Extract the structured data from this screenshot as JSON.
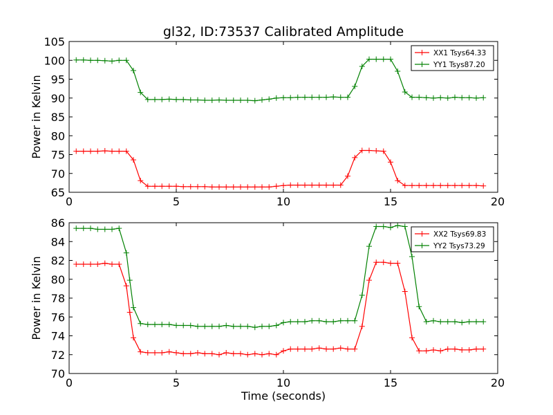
{
  "figure": {
    "background": "#ffffff"
  },
  "chart_data": [
    {
      "type": "line",
      "title": "gl32, ID:73537 Calibrated Amplitude",
      "xlabel": "",
      "ylabel": "Power in Kelvin",
      "xlim": [
        0,
        20
      ],
      "ylim": [
        65,
        105
      ],
      "xticks": [
        "0",
        "5",
        "10",
        "15",
        "20"
      ],
      "yticks": [
        "65",
        "70",
        "75",
        "80",
        "85",
        "90",
        "95",
        "100",
        "105"
      ],
      "grid": false,
      "legend_position": "top-right",
      "marker": "+",
      "x": [
        0.33,
        0.67,
        1.0,
        1.33,
        1.67,
        2.0,
        2.33,
        2.67,
        3.0,
        3.33,
        3.67,
        4.0,
        4.33,
        4.67,
        5.0,
        5.33,
        5.67,
        6.0,
        6.33,
        6.67,
        7.0,
        7.33,
        7.67,
        8.0,
        8.33,
        8.67,
        9.0,
        9.33,
        9.67,
        10.0,
        10.33,
        10.67,
        11.0,
        11.33,
        11.67,
        12.0,
        12.33,
        12.67,
        13.0,
        13.33,
        13.67,
        14.0,
        14.33,
        14.67,
        15.0,
        15.33,
        15.67,
        16.0,
        16.33,
        16.67,
        17.0,
        17.33,
        17.67,
        18.0,
        18.33,
        18.67,
        19.0,
        19.33
      ],
      "series": [
        {
          "name": "XX1 Tsys64.33",
          "color": "#ff0000",
          "values": [
            75.9,
            75.9,
            75.9,
            75.9,
            76.0,
            75.9,
            75.9,
            75.9,
            73.6,
            68.1,
            66.6,
            66.6,
            66.6,
            66.6,
            66.6,
            66.5,
            66.5,
            66.5,
            66.5,
            66.4,
            66.4,
            66.4,
            66.4,
            66.4,
            66.4,
            66.4,
            66.4,
            66.4,
            66.6,
            66.8,
            66.9,
            66.9,
            66.9,
            66.9,
            66.9,
            66.9,
            66.9,
            66.9,
            69.3,
            74.2,
            76.1,
            76.1,
            76.0,
            75.9,
            73.0,
            68.1,
            66.8,
            66.8,
            66.8,
            66.8,
            66.8,
            66.8,
            66.8,
            66.8,
            66.8,
            66.8,
            66.8,
            66.7
          ]
        },
        {
          "name": "YY1 Tsys87.20",
          "color": "#008000",
          "values": [
            100.1,
            100.1,
            100.0,
            100.0,
            99.9,
            99.8,
            100.0,
            100.0,
            97.3,
            91.5,
            89.6,
            89.6,
            89.6,
            89.7,
            89.6,
            89.6,
            89.5,
            89.5,
            89.4,
            89.4,
            89.5,
            89.4,
            89.4,
            89.4,
            89.4,
            89.3,
            89.5,
            89.7,
            90.0,
            90.1,
            90.1,
            90.2,
            90.2,
            90.2,
            90.2,
            90.2,
            90.3,
            90.2,
            90.2,
            93.1,
            98.4,
            100.3,
            100.3,
            100.3,
            100.3,
            97.1,
            91.6,
            90.2,
            90.2,
            90.1,
            90.0,
            90.1,
            90.0,
            90.2,
            90.1,
            90.1,
            90.0,
            90.1
          ]
        }
      ]
    },
    {
      "type": "line",
      "title": "",
      "xlabel": "Time (seconds)",
      "ylabel": "Power in Kelvin",
      "xlim": [
        0,
        20
      ],
      "ylim": [
        70,
        86
      ],
      "xticks": [
        "0",
        "5",
        "10",
        "15",
        "20"
      ],
      "yticks": [
        "70",
        "72",
        "74",
        "76",
        "78",
        "80",
        "82",
        "84",
        "86"
      ],
      "grid": false,
      "legend_position": "top-right",
      "marker": "+",
      "x": [
        0.33,
        0.67,
        1.0,
        1.33,
        1.67,
        2.0,
        2.33,
        2.67,
        2.83,
        3.0,
        3.33,
        3.67,
        4.0,
        4.33,
        4.67,
        5.0,
        5.33,
        5.67,
        6.0,
        6.33,
        6.67,
        7.0,
        7.33,
        7.67,
        8.0,
        8.33,
        8.67,
        9.0,
        9.33,
        9.67,
        10.0,
        10.33,
        10.67,
        11.0,
        11.33,
        11.67,
        12.0,
        12.33,
        12.67,
        13.0,
        13.33,
        13.67,
        14.0,
        14.33,
        14.67,
        15.0,
        15.33,
        15.67,
        16.0,
        16.33,
        16.67,
        17.0,
        17.33,
        17.67,
        18.0,
        18.33,
        18.67,
        19.0,
        19.33
      ],
      "series": [
        {
          "name": "XX2 Tsys69.83",
          "color": "#ff0000",
          "values": [
            81.6,
            81.6,
            81.6,
            81.6,
            81.7,
            81.6,
            81.6,
            79.3,
            76.5,
            73.8,
            72.3,
            72.2,
            72.2,
            72.2,
            72.3,
            72.2,
            72.1,
            72.1,
            72.2,
            72.1,
            72.1,
            72.0,
            72.2,
            72.1,
            72.1,
            72.0,
            72.1,
            72.0,
            72.1,
            72.0,
            72.4,
            72.6,
            72.6,
            72.6,
            72.6,
            72.7,
            72.6,
            72.6,
            72.7,
            72.6,
            72.6,
            75.0,
            79.9,
            81.8,
            81.8,
            81.7,
            81.7,
            78.7,
            73.8,
            72.4,
            72.4,
            72.5,
            72.4,
            72.6,
            72.6,
            72.5,
            72.5,
            72.6,
            72.6
          ]
        },
        {
          "name": "YY2 Tsys73.29",
          "color": "#008000",
          "values": [
            85.4,
            85.4,
            85.4,
            85.3,
            85.3,
            85.3,
            85.4,
            82.8,
            79.9,
            77.0,
            75.3,
            75.2,
            75.2,
            75.2,
            75.2,
            75.1,
            75.1,
            75.1,
            75.0,
            75.0,
            75.0,
            75.0,
            75.1,
            75.0,
            75.0,
            75.0,
            74.9,
            75.0,
            75.0,
            75.1,
            75.4,
            75.5,
            75.5,
            75.5,
            75.6,
            75.6,
            75.5,
            75.5,
            75.6,
            75.6,
            75.6,
            78.3,
            83.5,
            85.6,
            85.6,
            85.5,
            85.7,
            85.6,
            82.4,
            77.1,
            75.5,
            75.6,
            75.5,
            75.5,
            75.5,
            75.4,
            75.5,
            75.5,
            75.5
          ]
        }
      ]
    }
  ]
}
